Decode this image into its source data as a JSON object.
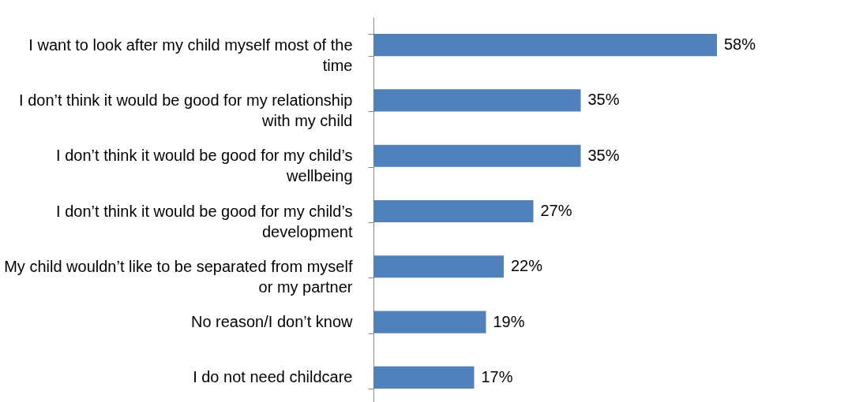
{
  "chart_data": {
    "type": "bar",
    "orientation": "horizontal",
    "categories": [
      "I want to look after my child myself most of the time",
      "I don’t think it would be good for my relationship with my child",
      "I don’t think it would be good for my child’s wellbeing",
      "I don’t think it would be good for my child’s development",
      "My child wouldn’t like to be separated from myself or my partner",
      "No reason/I don’t know",
      "I do not need childcare"
    ],
    "values": [
      58,
      35,
      35,
      27,
      22,
      19,
      17
    ],
    "value_labels": [
      "58%",
      "35%",
      "35%",
      "27%",
      "22%",
      "19%",
      "17%"
    ],
    "color": "#4f81bd"
  }
}
